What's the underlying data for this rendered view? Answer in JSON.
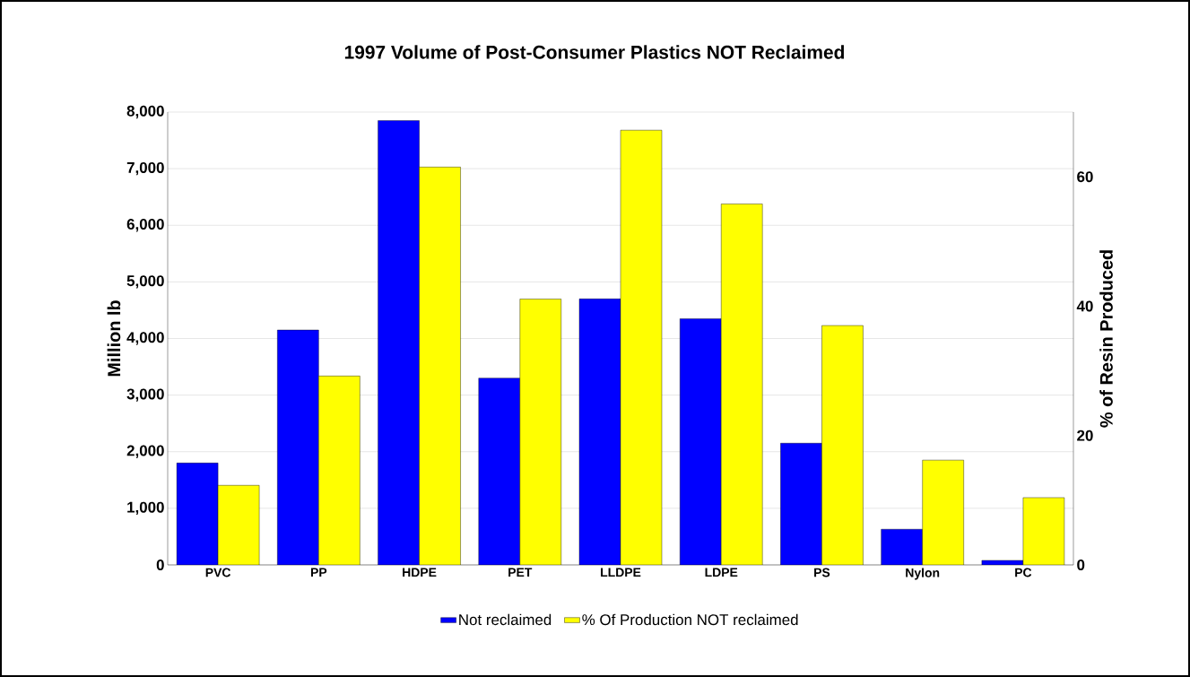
{
  "chart_data": {
    "type": "bar",
    "title": "1997 Volume of Post-Consumer Plastics NOT Reclaimed",
    "ylabel": "Million lb",
    "y2label": "% of Resin Produced",
    "categories": [
      "PVC",
      "PP",
      "HDPE",
      "PET",
      "LLDPE",
      "LDPE",
      "PS",
      "Nylon",
      "PC"
    ],
    "series": [
      {
        "name": "Not reclaimed",
        "color": "#0000ff",
        "values": [
          1800,
          4150,
          7850,
          3300,
          4700,
          4350,
          2150,
          630,
          80
        ]
      },
      {
        "name": "% Of Production NOT reclaimed",
        "color": "#ffff00",
        "axis": "y2",
        "values": [
          12.3,
          29.2,
          61.5,
          41.1,
          67.2,
          55.8,
          37.0,
          16.2,
          10.4
        ]
      }
    ],
    "ylim": [
      0,
      8000
    ],
    "yticks": [
      0,
      {
        "value": 1000,
        "label": "1,000"
      },
      {
        "value": 2000,
        "label": "2,000"
      },
      {
        "value": 3000,
        "label": "3,000"
      },
      {
        "value": 4000,
        "label": "4,000"
      },
      {
        "value": 5000,
        "label": "5,000"
      },
      {
        "value": 6000,
        "label": "6,000"
      },
      {
        "value": 7000,
        "label": "7,000"
      },
      {
        "value": 8000,
        "label": "8,000"
      }
    ],
    "y2lim": [
      0,
      70
    ],
    "y2ticks": [
      0,
      20,
      40,
      60
    ],
    "grid": "y",
    "legend": "bottom"
  }
}
